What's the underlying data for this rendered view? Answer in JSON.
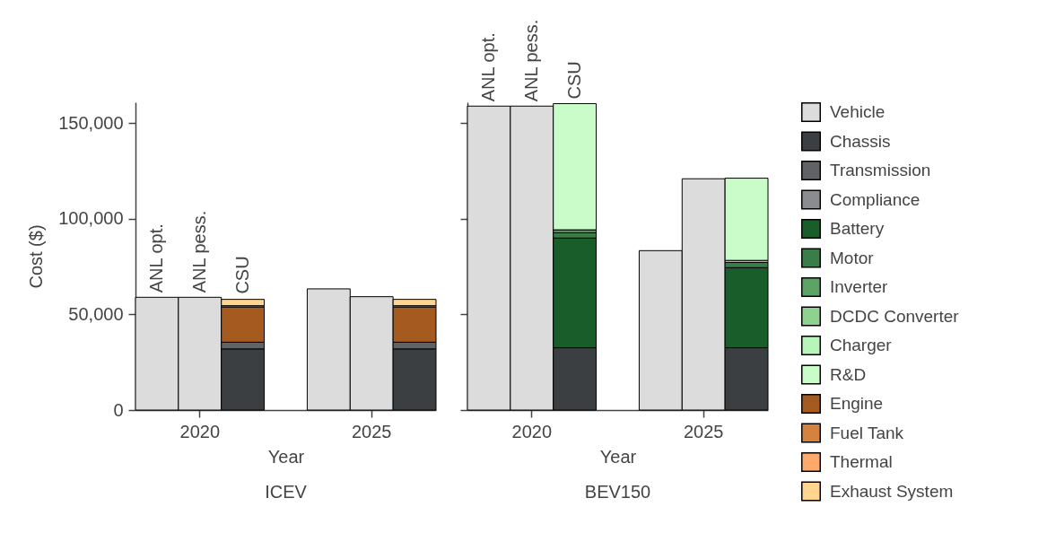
{
  "chart_data": [
    {
      "type": "bar",
      "stacked": true,
      "title": "ICEV",
      "xlabel": "Year",
      "ylabel": "Cost ($)",
      "categories": [
        null,
        "2020",
        null,
        null,
        null,
        "2025",
        null
      ],
      "ylim": [
        0,
        161000
      ],
      "yticks": [
        0,
        {
          "value": 50000,
          "label": "50,000"
        },
        {
          "value": 100000,
          "label": "100,000"
        },
        {
          "value": 150000,
          "label": "150,000"
        }
      ],
      "legend": "right",
      "annotations": [
        {
          "text": "ANL opt.",
          "y": 59000
        },
        {
          "text": "ANL pess.",
          "y": 59000
        },
        {
          "text": "CSU",
          "y": 58400
        }
      ],
      "series": [
        {
          "name": "Vehicle",
          "color": "#dcdcdc",
          "values": [
            59000,
            59000,
            null,
            null,
            63400,
            59300,
            null
          ]
        },
        {
          "name": "Chassis",
          "color": "#3b3f42",
          "values": [
            null,
            null,
            32000,
            null,
            null,
            null,
            32000
          ]
        },
        {
          "name": "Transmission",
          "color": "#5f6366",
          "values": [
            null,
            null,
            3500,
            null,
            null,
            null,
            3500
          ]
        },
        {
          "name": "Compliance",
          "color": "#8a8d90",
          "values": [
            null,
            null,
            null,
            null,
            null,
            null,
            null
          ]
        },
        {
          "name": "Battery",
          "color": "#195e2a",
          "values": [
            null,
            null,
            null,
            null,
            null,
            null,
            null
          ]
        },
        {
          "name": "Motor",
          "color": "#3a7d48",
          "values": [
            null,
            null,
            null,
            null,
            null,
            null,
            null
          ]
        },
        {
          "name": "Inverter",
          "color": "#5ca366",
          "values": [
            null,
            null,
            null,
            null,
            null,
            null,
            null
          ]
        },
        {
          "name": "DCDC Converter",
          "color": "#8fd18f",
          "values": [
            null,
            null,
            null,
            null,
            null,
            null,
            null
          ]
        },
        {
          "name": "Charger",
          "color": "#b8f5b8",
          "values": [
            null,
            null,
            null,
            null,
            null,
            null,
            null
          ]
        },
        {
          "name": "R&D",
          "color": "#c9fcc9",
          "values": [
            null,
            null,
            null,
            null,
            null,
            null,
            null
          ]
        },
        {
          "name": "Engine",
          "color": "#a55a1f",
          "values": [
            null,
            null,
            18400,
            null,
            null,
            null,
            18400
          ]
        },
        {
          "name": "Fuel Tank",
          "color": "#d4823e",
          "values": [
            null,
            null,
            700,
            null,
            null,
            null,
            700
          ]
        },
        {
          "name": "Thermal",
          "color": "#fdaa6a",
          "values": [
            null,
            null,
            null,
            null,
            null,
            null,
            null
          ]
        },
        {
          "name": "Exhaust System",
          "color": "#ffd590",
          "values": [
            null,
            null,
            3300,
            null,
            null,
            null,
            3300
          ]
        }
      ]
    },
    {
      "type": "bar",
      "stacked": true,
      "title": "BEV150",
      "xlabel": "Year",
      "categories": [
        null,
        "2020",
        null,
        null,
        null,
        "2025",
        null
      ],
      "ylim": [
        0,
        161000
      ],
      "yticks": [
        0,
        50000,
        100000,
        150000
      ],
      "tick_labels": "x",
      "annotations": [
        {
          "text": "ANL opt.",
          "y": 159000
        },
        {
          "text": "ANL pess.",
          "y": 159000
        },
        {
          "text": "CSU",
          "y": 160300
        }
      ],
      "series": [
        {
          "color": "#dcdcdc",
          "values": [
            159000,
            159000,
            null,
            null,
            83400,
            121000,
            null
          ]
        },
        {
          "color": "#3b3f42",
          "values": [
            null,
            null,
            32600,
            null,
            null,
            null,
            32600
          ]
        },
        {
          "color": "#195e2a",
          "values": [
            null,
            null,
            57400,
            null,
            null,
            null,
            41900
          ]
        },
        {
          "color": "#3a7d48",
          "values": [
            null,
            null,
            2800,
            null,
            null,
            null,
            2700
          ]
        },
        {
          "color": "#5ca366",
          "values": [
            null,
            null,
            1500,
            null,
            null,
            null,
            null
          ]
        },
        {
          "color": "#8fd18f",
          "values": [
            null,
            null,
            null,
            null,
            null,
            null,
            1100
          ]
        },
        {
          "color": "#c9fcc9",
          "values": [
            null,
            null,
            66000,
            null,
            null,
            null,
            43000
          ]
        }
      ]
    }
  ]
}
